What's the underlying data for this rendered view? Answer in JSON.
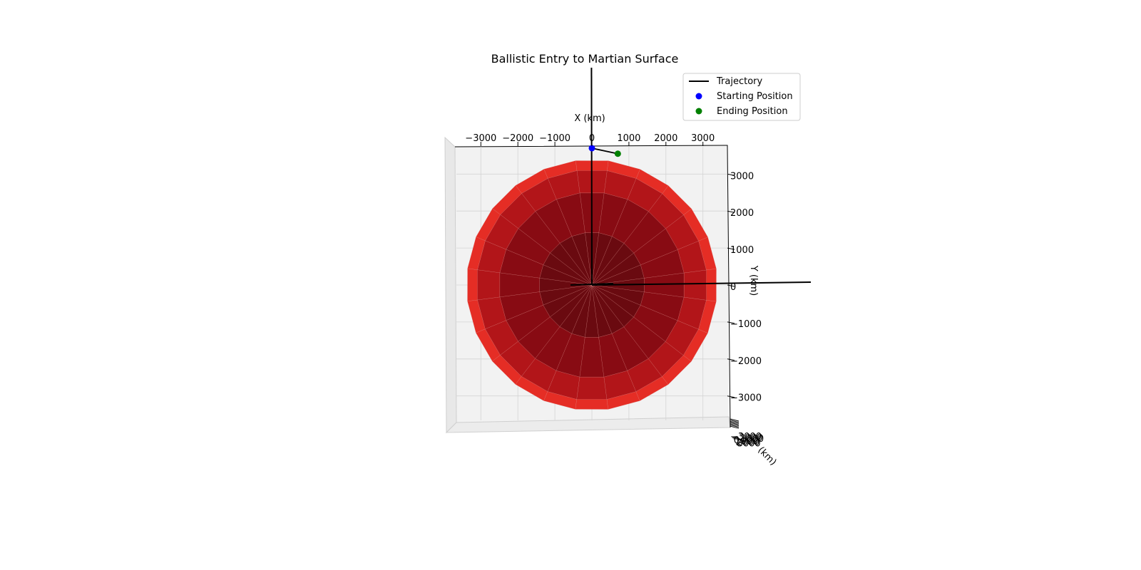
{
  "chart_data": {
    "type": "scatter",
    "title": "Ballistic Entry to Martian Surface",
    "xlabel": "X (km)",
    "ylabel": "Y (km)",
    "zlabel": "(km)",
    "x_ticks": [
      -3000,
      -2000,
      -1000,
      0,
      1000,
      2000,
      3000
    ],
    "y_ticks": [
      3000,
      2000,
      1000,
      0,
      -1000,
      -2000,
      -3000
    ],
    "z_ticks": [
      -3000,
      -2000,
      -1000,
      0,
      1000,
      2000,
      3000
    ],
    "xlim": [
      -3800,
      3800
    ],
    "ylim": [
      -3800,
      3800
    ],
    "grid": true,
    "surface": {
      "name": "Mars sphere",
      "radius_km": 3390,
      "color": "#e52d25"
    },
    "series": [
      {
        "name": "Trajectory",
        "kind": "line",
        "color": "#000000",
        "x": [
          0,
          700
        ],
        "y": [
          3700,
          3550
        ]
      },
      {
        "name": "Starting Position",
        "kind": "point",
        "color": "#0000ff",
        "x": [
          0
        ],
        "y": [
          3700
        ]
      },
      {
        "name": "Ending Position",
        "kind": "point",
        "color": "#008000",
        "x": [
          700
        ],
        "y": [
          3550
        ]
      }
    ],
    "axes_lines_color": "#000000",
    "legend_placement": "top-right"
  }
}
